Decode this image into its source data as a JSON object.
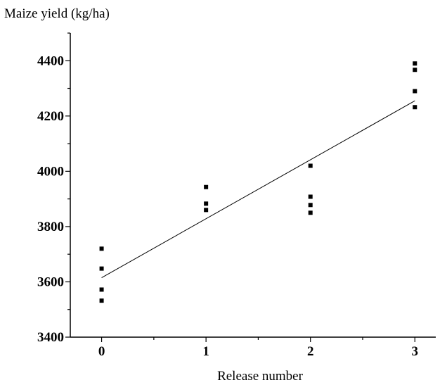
{
  "chart_data": {
    "type": "scatter",
    "title": "Maize yield (kg/ha)",
    "xlabel": "Release number",
    "ylabel": "",
    "xlim": [
      -0.3,
      3.2
    ],
    "ylim": [
      3400,
      4500
    ],
    "x_ticks": [
      0,
      1,
      2,
      3
    ],
    "x_minor_ticks": [
      0.5,
      1.5,
      2.5
    ],
    "y_ticks": [
      3400,
      3600,
      3800,
      4000,
      4200,
      4400
    ],
    "y_minor_ticks": [
      3500,
      3700,
      3900,
      4100,
      4300,
      4500
    ],
    "grid": false,
    "legend": "none",
    "series": [
      {
        "points": [
          {
            "x": 0,
            "y": 3720
          },
          {
            "x": 0,
            "y": 3648
          },
          {
            "x": 0,
            "y": 3572
          },
          {
            "x": 0,
            "y": 3532
          },
          {
            "x": 1,
            "y": 3943
          },
          {
            "x": 1,
            "y": 3883
          },
          {
            "x": 1,
            "y": 3860
          },
          {
            "x": 2,
            "y": 4020
          },
          {
            "x": 2,
            "y": 3908
          },
          {
            "x": 2,
            "y": 3878
          },
          {
            "x": 2,
            "y": 3850
          },
          {
            "x": 3,
            "y": 4390
          },
          {
            "x": 3,
            "y": 4367
          },
          {
            "x": 3,
            "y": 4290
          },
          {
            "x": 3,
            "y": 4232
          }
        ]
      }
    ],
    "fit_line": {
      "x": [
        0,
        3
      ],
      "y": [
        3615,
        4255
      ]
    },
    "colors": {
      "points": "#000000",
      "line": "#000000",
      "axes": "#000000"
    }
  }
}
